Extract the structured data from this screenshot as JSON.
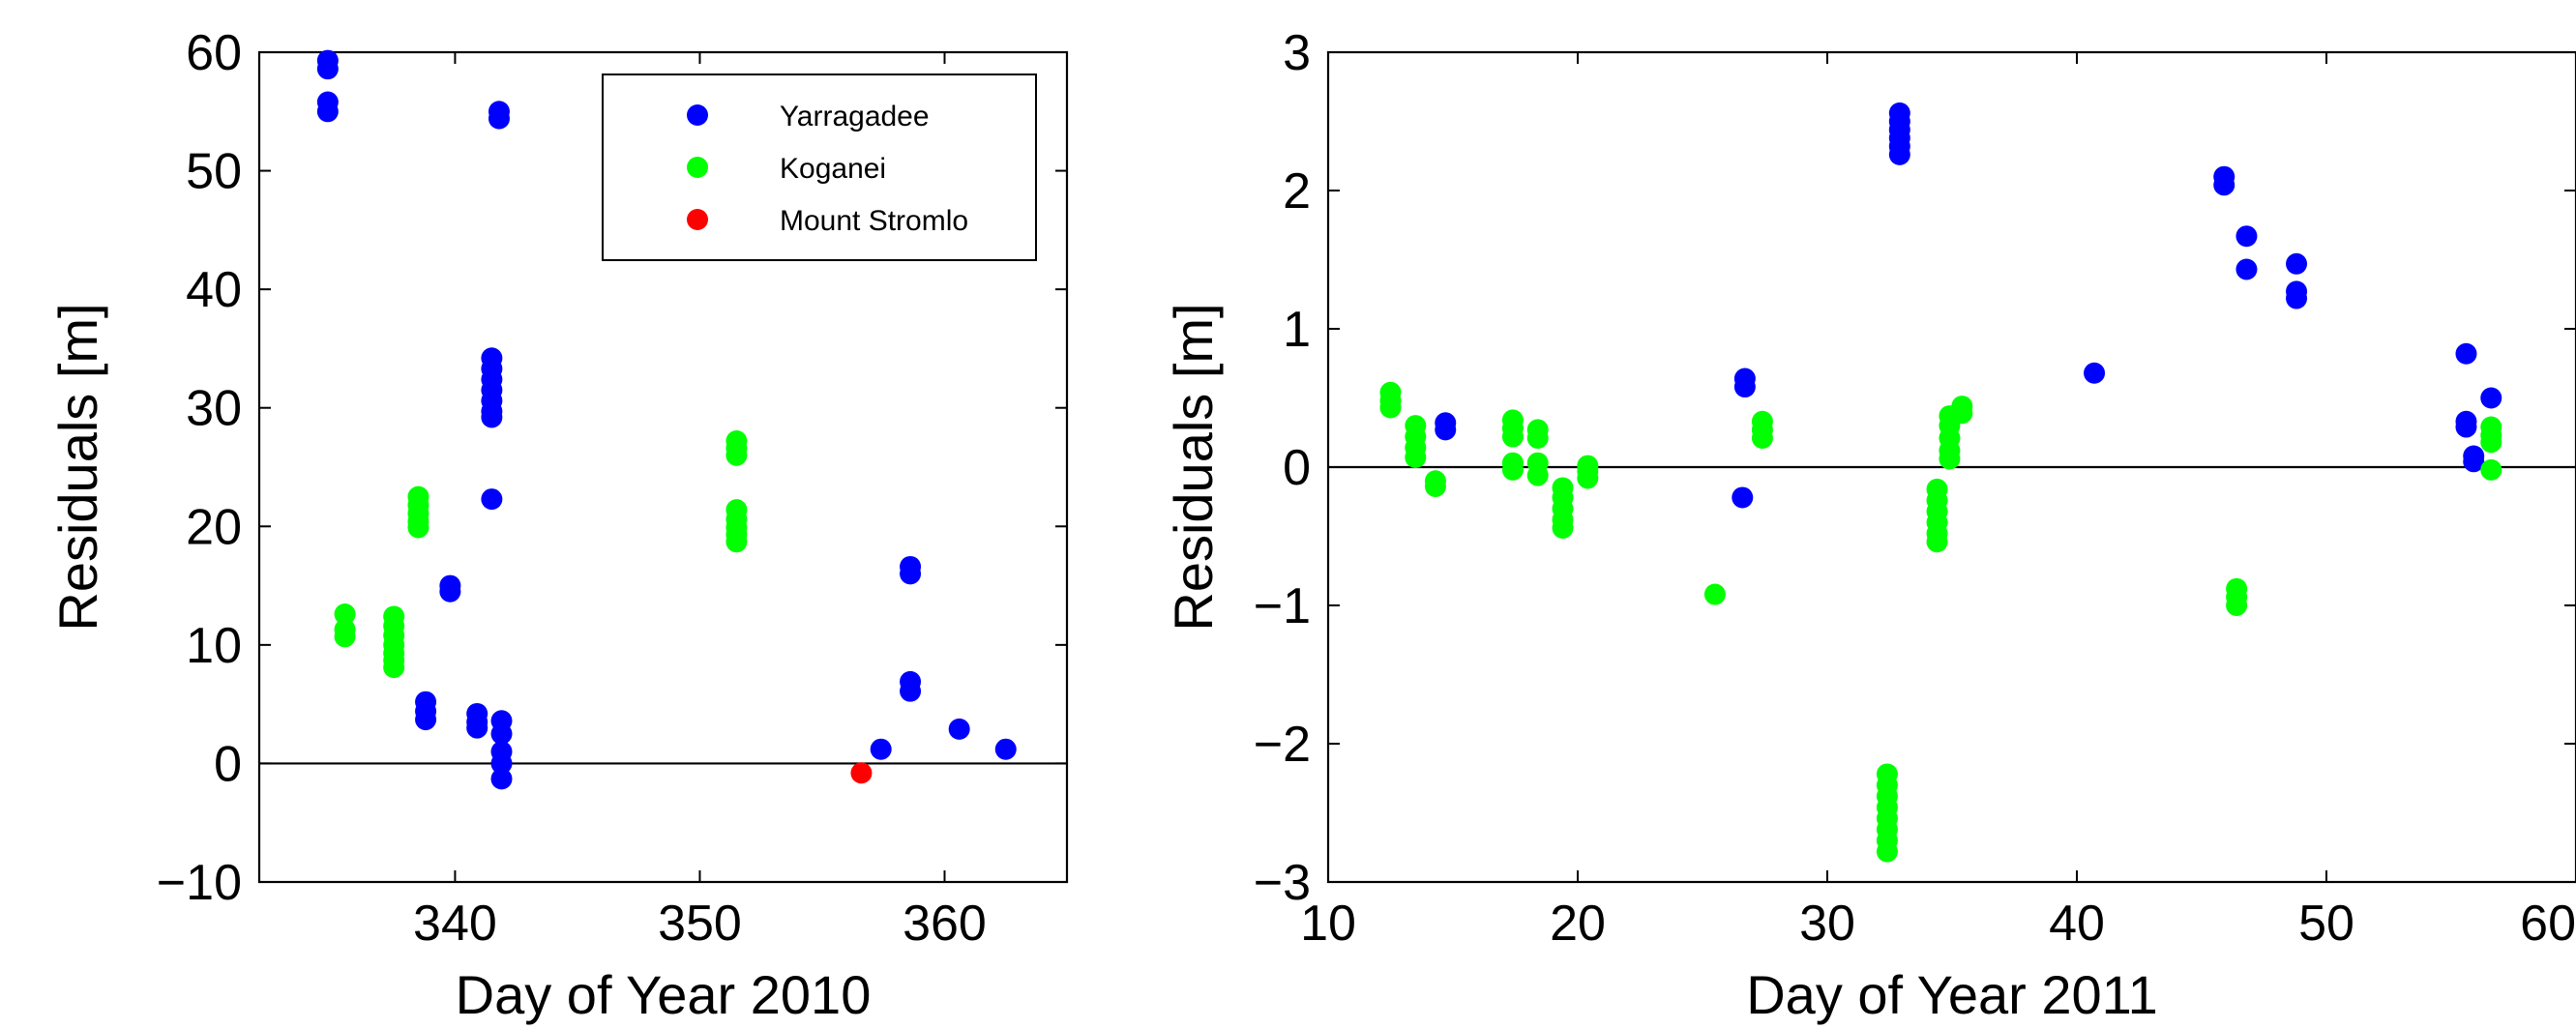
{
  "chart_data": [
    {
      "type": "scatter",
      "xlabel": "Day of Year 2010",
      "ylabel": "Residuals [m]",
      "xlim": [
        332,
        365
      ],
      "ylim": [
        -10,
        60
      ],
      "xticks": [
        340,
        350,
        360
      ],
      "yticks": [
        -10,
        0,
        10,
        20,
        30,
        40,
        50,
        60
      ],
      "xtick_labels": [
        "340",
        "350",
        "360"
      ],
      "ytick_labels": [
        "−10",
        "0",
        "10",
        "20",
        "30",
        "40",
        "50",
        "60"
      ],
      "zero_line": true,
      "grid": false,
      "legend": {
        "position": "top-right",
        "entries": [
          "Yarragadee",
          "Koganei",
          "Mount Stromlo"
        ]
      },
      "series": [
        {
          "name": "Yarragadee",
          "color": "#0000ff",
          "points": [
            [
              334.8,
              59.3
            ],
            [
              334.8,
              58.6
            ],
            [
              334.8,
              55.8
            ],
            [
              334.8,
              55.0
            ],
            [
              341.8,
              55.0
            ],
            [
              341.8,
              54.4
            ],
            [
              341.5,
              34.2
            ],
            [
              341.5,
              33.3
            ],
            [
              341.5,
              32.4
            ],
            [
              341.5,
              31.5
            ],
            [
              341.5,
              30.6
            ],
            [
              341.5,
              29.7
            ],
            [
              341.5,
              29.2
            ],
            [
              341.5,
              22.3
            ],
            [
              339.8,
              15.0
            ],
            [
              339.8,
              14.5
            ],
            [
              338.8,
              5.2
            ],
            [
              338.8,
              4.4
            ],
            [
              338.8,
              3.7
            ],
            [
              340.9,
              4.2
            ],
            [
              340.9,
              3.5
            ],
            [
              340.9,
              3.0
            ],
            [
              341.9,
              3.6
            ],
            [
              341.9,
              2.5
            ],
            [
              341.9,
              1.0
            ],
            [
              341.9,
              0.0
            ],
            [
              341.9,
              -1.3
            ],
            [
              357.4,
              1.2
            ],
            [
              358.6,
              16.6
            ],
            [
              358.6,
              16.0
            ],
            [
              358.6,
              6.9
            ],
            [
              358.6,
              6.1
            ],
            [
              360.6,
              2.9
            ],
            [
              362.5,
              1.2
            ]
          ]
        },
        {
          "name": "Koganei",
          "color": "#00ff00",
          "points": [
            [
              335.5,
              12.6
            ],
            [
              335.5,
              11.3
            ],
            [
              335.5,
              10.7
            ],
            [
              337.5,
              12.4
            ],
            [
              337.5,
              11.6
            ],
            [
              337.5,
              10.8
            ],
            [
              337.5,
              10.0
            ],
            [
              337.5,
              9.3
            ],
            [
              337.5,
              8.7
            ],
            [
              337.5,
              8.1
            ],
            [
              338.5,
              22.5
            ],
            [
              338.5,
              21.8
            ],
            [
              338.5,
              21.1
            ],
            [
              338.5,
              20.4
            ],
            [
              338.5,
              19.9
            ],
            [
              351.5,
              27.2
            ],
            [
              351.5,
              26.6
            ],
            [
              351.5,
              26.0
            ],
            [
              351.5,
              21.4
            ],
            [
              351.5,
              20.6
            ],
            [
              351.5,
              19.9
            ],
            [
              351.5,
              19.3
            ],
            [
              351.5,
              18.7
            ]
          ]
        },
        {
          "name": "Mount Stromlo",
          "color": "#ff0000",
          "points": [
            [
              356.6,
              -0.8
            ]
          ]
        }
      ]
    },
    {
      "type": "scatter",
      "xlabel": "Day of Year 2011",
      "ylabel": "Residuals [m]",
      "xlim": [
        10,
        60
      ],
      "ylim": [
        -3,
        3
      ],
      "xticks": [
        10,
        20,
        30,
        40,
        50,
        60
      ],
      "yticks": [
        -3,
        -2,
        -1,
        0,
        1,
        2,
        3
      ],
      "xtick_labels": [
        "10",
        "20",
        "30",
        "40",
        "50",
        "60"
      ],
      "ytick_labels": [
        "−3",
        "−2",
        "−1",
        "0",
        "1",
        "2",
        "3"
      ],
      "zero_line": true,
      "grid": false,
      "series": [
        {
          "name": "Yarragadee",
          "color": "#0000ff",
          "points": [
            [
              14.7,
              0.32
            ],
            [
              14.7,
              0.27
            ],
            [
              26.7,
              0.64
            ],
            [
              26.7,
              0.58
            ],
            [
              26.6,
              -0.22
            ],
            [
              32.9,
              2.56
            ],
            [
              32.9,
              2.5
            ],
            [
              32.9,
              2.44
            ],
            [
              32.9,
              2.38
            ],
            [
              32.9,
              2.32
            ],
            [
              32.9,
              2.26
            ],
            [
              40.7,
              0.68
            ],
            [
              45.9,
              2.1
            ],
            [
              45.9,
              2.04
            ],
            [
              46.8,
              1.67
            ],
            [
              46.8,
              1.43
            ],
            [
              48.8,
              1.47
            ],
            [
              48.8,
              1.27
            ],
            [
              48.8,
              1.22
            ],
            [
              55.6,
              0.82
            ],
            [
              55.6,
              0.33
            ],
            [
              55.6,
              0.29
            ],
            [
              55.9,
              0.08
            ],
            [
              55.9,
              0.04
            ],
            [
              56.6,
              0.5
            ]
          ]
        },
        {
          "name": "Koganei",
          "color": "#00ff00",
          "points": [
            [
              12.5,
              0.54
            ],
            [
              12.5,
              0.48
            ],
            [
              12.5,
              0.43
            ],
            [
              13.5,
              0.3
            ],
            [
              13.5,
              0.22
            ],
            [
              13.5,
              0.14
            ],
            [
              13.5,
              0.07
            ],
            [
              14.3,
              -0.1
            ],
            [
              14.3,
              -0.14
            ],
            [
              17.4,
              0.34
            ],
            [
              17.4,
              0.28
            ],
            [
              17.4,
              0.22
            ],
            [
              17.4,
              0.03
            ],
            [
              17.4,
              -0.02
            ],
            [
              18.4,
              0.27
            ],
            [
              18.4,
              0.21
            ],
            [
              18.4,
              0.03
            ],
            [
              18.4,
              -0.06
            ],
            [
              19.4,
              -0.15
            ],
            [
              19.4,
              -0.22
            ],
            [
              19.4,
              -0.3
            ],
            [
              19.4,
              -0.38
            ],
            [
              19.4,
              -0.44
            ],
            [
              20.4,
              0.01
            ],
            [
              20.4,
              -0.03
            ],
            [
              20.4,
              -0.08
            ],
            [
              25.5,
              -0.92
            ],
            [
              27.4,
              0.33
            ],
            [
              27.4,
              0.27
            ],
            [
              27.4,
              0.21
            ],
            [
              32.4,
              -2.22
            ],
            [
              32.4,
              -2.3
            ],
            [
              32.4,
              -2.38
            ],
            [
              32.4,
              -2.46
            ],
            [
              32.4,
              -2.54
            ],
            [
              32.4,
              -2.62
            ],
            [
              32.4,
              -2.7
            ],
            [
              32.4,
              -2.78
            ],
            [
              34.4,
              -0.16
            ],
            [
              34.4,
              -0.24
            ],
            [
              34.4,
              -0.32
            ],
            [
              34.4,
              -0.4
            ],
            [
              34.4,
              -0.48
            ],
            [
              34.4,
              -0.54
            ],
            [
              34.9,
              0.37
            ],
            [
              34.9,
              0.3
            ],
            [
              34.9,
              0.21
            ],
            [
              34.9,
              0.12
            ],
            [
              34.9,
              0.06
            ],
            [
              35.4,
              0.44
            ],
            [
              35.4,
              0.39
            ],
            [
              46.4,
              -0.88
            ],
            [
              46.4,
              -0.94
            ],
            [
              46.4,
              -1.0
            ],
            [
              56.6,
              0.29
            ],
            [
              56.6,
              0.23
            ],
            [
              56.6,
              0.18
            ],
            [
              56.6,
              -0.02
            ]
          ]
        }
      ]
    }
  ]
}
